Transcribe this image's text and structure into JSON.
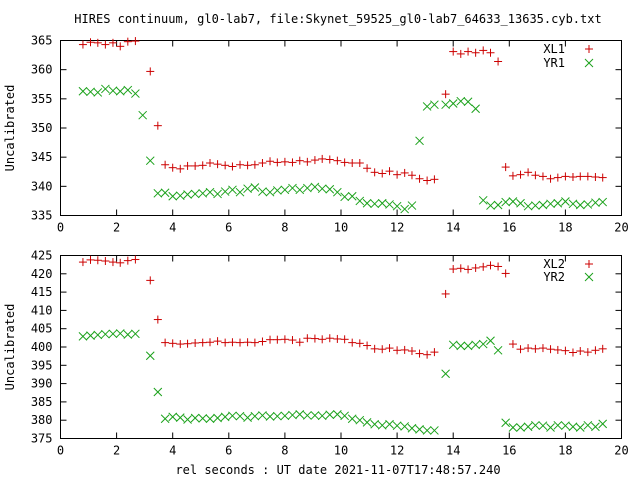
{
  "figure": {
    "title": "HIRES continuum, gl0-lab7, file:Skynet_59525_gl0-lab7_64633_13635.cyb.txt",
    "xlabel": "rel seconds : UT date 2021-11-07T17:48:57.240"
  },
  "colors": {
    "red_series": "#cc0000",
    "green_series": "#1aa11a"
  },
  "chart_data": [
    {
      "type": "scatter",
      "ylabel": "Uncalibrated",
      "xlim": [
        0,
        20
      ],
      "ylim": [
        335,
        365
      ],
      "xticks": [
        0,
        2,
        4,
        6,
        8,
        10,
        12,
        14,
        16,
        18,
        20
      ],
      "yticks": [
        335,
        340,
        345,
        350,
        355,
        360,
        365
      ],
      "legend_position": "top-right",
      "series": [
        {
          "name": "XL1",
          "marker": "plus",
          "x": [
            0.8,
            1.07,
            1.33,
            1.6,
            1.87,
            2.13,
            2.4,
            2.67,
            3.2,
            3.47,
            3.73,
            4.0,
            4.27,
            4.53,
            4.8,
            5.07,
            5.33,
            5.6,
            5.87,
            6.13,
            6.4,
            6.67,
            6.93,
            7.2,
            7.47,
            7.73,
            8.0,
            8.27,
            8.53,
            8.8,
            9.07,
            9.33,
            9.6,
            9.87,
            10.13,
            10.4,
            10.67,
            10.93,
            11.2,
            11.47,
            11.73,
            12.0,
            12.27,
            12.53,
            12.8,
            13.07,
            13.33,
            13.73,
            14.0,
            14.27,
            14.53,
            14.8,
            15.07,
            15.33,
            15.6,
            15.87,
            16.13,
            16.4,
            16.67,
            16.93,
            17.2,
            17.47,
            17.73,
            18.0,
            18.27,
            18.53,
            18.8,
            19.07,
            19.33
          ],
          "y": [
            364.3,
            364.7,
            364.6,
            364.3,
            364.6,
            364.0,
            364.8,
            364.9,
            359.7,
            350.4,
            343.7,
            343.2,
            343.0,
            343.5,
            343.5,
            343.6,
            344.0,
            343.8,
            343.6,
            343.4,
            343.7,
            343.6,
            343.7,
            344.0,
            344.3,
            344.1,
            344.2,
            344.1,
            344.4,
            344.2,
            344.5,
            344.7,
            344.6,
            344.4,
            344.1,
            344.0,
            344.0,
            343.1,
            342.4,
            342.2,
            342.6,
            342.0,
            342.3,
            341.9,
            341.3,
            341.0,
            341.2,
            355.8,
            363.1,
            362.7,
            363.1,
            362.9,
            363.3,
            362.9,
            361.4,
            343.3,
            341.8,
            342.0,
            342.4,
            341.9,
            341.7,
            341.3,
            341.5,
            341.7,
            341.6,
            341.7,
            341.7,
            341.6,
            341.5
          ]
        },
        {
          "name": "YR1",
          "marker": "cross",
          "x": [
            0.8,
            1.07,
            1.33,
            1.6,
            1.87,
            2.13,
            2.4,
            2.67,
            2.93,
            3.2,
            3.47,
            3.73,
            4.0,
            4.27,
            4.53,
            4.8,
            5.07,
            5.33,
            5.6,
            5.87,
            6.13,
            6.4,
            6.67,
            6.93,
            7.2,
            7.47,
            7.73,
            8.0,
            8.27,
            8.53,
            8.8,
            9.07,
            9.33,
            9.6,
            9.87,
            10.13,
            10.4,
            10.67,
            10.93,
            11.2,
            11.47,
            11.73,
            12.0,
            12.27,
            12.53,
            12.8,
            13.07,
            13.33,
            13.73,
            14.0,
            14.27,
            14.53,
            14.8,
            15.07,
            15.33,
            15.6,
            15.87,
            16.13,
            16.4,
            16.67,
            16.93,
            17.2,
            17.47,
            17.73,
            18.0,
            18.27,
            18.53,
            18.8,
            19.07,
            19.33
          ],
          "y": [
            356.3,
            356.2,
            356.1,
            356.7,
            356.4,
            356.3,
            356.5,
            355.9,
            352.2,
            344.4,
            338.8,
            338.9,
            338.3,
            338.4,
            338.6,
            338.7,
            338.8,
            339.0,
            338.7,
            339.1,
            339.4,
            339.0,
            339.6,
            339.8,
            339.1,
            339.0,
            339.3,
            339.4,
            339.7,
            339.4,
            339.7,
            339.9,
            339.6,
            339.5,
            339.0,
            338.2,
            338.3,
            337.5,
            337.1,
            337.0,
            337.1,
            336.9,
            336.6,
            336.1,
            336.7,
            347.8,
            353.7,
            354.0,
            354.0,
            354.2,
            354.6,
            354.5,
            353.3,
            337.6,
            336.7,
            336.8,
            337.3,
            337.4,
            337.1,
            336.6,
            336.7,
            336.8,
            337.0,
            337.1,
            337.4,
            337.0,
            336.8,
            336.9,
            337.2,
            337.3
          ]
        }
      ]
    },
    {
      "type": "scatter",
      "ylabel": "Uncalibrated",
      "xlim": [
        0,
        20
      ],
      "ylim": [
        375,
        425
      ],
      "xticks": [
        0,
        2,
        4,
        6,
        8,
        10,
        12,
        14,
        16,
        18,
        20
      ],
      "yticks": [
        375,
        380,
        385,
        390,
        395,
        400,
        405,
        410,
        415,
        420,
        425
      ],
      "legend_position": "top-right",
      "series": [
        {
          "name": "XL2",
          "marker": "plus",
          "x": [
            0.8,
            1.07,
            1.33,
            1.6,
            1.87,
            2.13,
            2.4,
            2.67,
            3.2,
            3.47,
            3.73,
            4.0,
            4.27,
            4.53,
            4.8,
            5.07,
            5.33,
            5.6,
            5.87,
            6.13,
            6.4,
            6.67,
            6.93,
            7.2,
            7.47,
            7.73,
            8.0,
            8.27,
            8.53,
            8.8,
            9.07,
            9.33,
            9.6,
            9.87,
            10.13,
            10.4,
            10.67,
            10.93,
            11.2,
            11.47,
            11.73,
            12.0,
            12.27,
            12.53,
            12.8,
            13.07,
            13.33,
            13.73,
            14.0,
            14.27,
            14.53,
            14.8,
            15.07,
            15.33,
            15.6,
            15.87,
            16.13,
            16.4,
            16.67,
            16.93,
            17.2,
            17.47,
            17.73,
            18.0,
            18.27,
            18.53,
            18.8,
            19.07,
            19.33
          ],
          "y": [
            423.2,
            423.8,
            423.7,
            423.5,
            423.2,
            423.0,
            423.6,
            423.9,
            418.2,
            407.5,
            401.2,
            401.0,
            400.8,
            400.9,
            401.1,
            401.2,
            401.3,
            401.6,
            401.2,
            401.3,
            401.2,
            401.3,
            401.2,
            401.5,
            402.0,
            402.0,
            402.1,
            401.9,
            401.3,
            402.4,
            402.3,
            402.1,
            402.4,
            402.2,
            402.1,
            401.2,
            401.0,
            400.4,
            399.5,
            399.4,
            399.7,
            399.1,
            399.2,
            398.9,
            398.2,
            397.9,
            398.6,
            414.5,
            421.3,
            421.5,
            421.2,
            421.6,
            421.9,
            422.3,
            422.0,
            420.1,
            400.8,
            399.4,
            399.7,
            399.5,
            399.7,
            399.4,
            399.2,
            399.0,
            398.5,
            398.9,
            398.6,
            399.1,
            399.5
          ]
        },
        {
          "name": "YR2",
          "marker": "cross",
          "x": [
            0.8,
            1.07,
            1.33,
            1.6,
            1.87,
            2.13,
            2.4,
            2.67,
            3.2,
            3.47,
            3.73,
            4.0,
            4.27,
            4.53,
            4.8,
            5.07,
            5.33,
            5.6,
            5.87,
            6.13,
            6.4,
            6.67,
            6.93,
            7.2,
            7.47,
            7.73,
            8.0,
            8.27,
            8.53,
            8.8,
            9.07,
            9.33,
            9.6,
            9.87,
            10.13,
            10.4,
            10.67,
            10.93,
            11.2,
            11.47,
            11.73,
            12.0,
            12.27,
            12.53,
            12.8,
            13.07,
            13.33,
            13.73,
            14.0,
            14.27,
            14.53,
            14.8,
            15.07,
            15.33,
            15.6,
            15.87,
            16.13,
            16.4,
            16.67,
            16.93,
            17.2,
            17.47,
            17.73,
            18.0,
            18.27,
            18.53,
            18.8,
            19.07,
            19.33
          ],
          "y": [
            402.9,
            403.1,
            403.3,
            403.5,
            403.6,
            403.7,
            403.4,
            403.6,
            397.6,
            387.7,
            380.4,
            380.9,
            380.7,
            380.2,
            380.6,
            380.5,
            380.4,
            380.6,
            380.9,
            381.2,
            381.1,
            380.7,
            381.1,
            381.3,
            381.0,
            381.1,
            381.2,
            381.4,
            381.6,
            381.3,
            381.3,
            381.2,
            381.5,
            381.6,
            381.2,
            380.4,
            380.0,
            379.4,
            378.9,
            378.6,
            378.9,
            378.5,
            378.3,
            377.8,
            377.5,
            377.2,
            377.2,
            392.7,
            400.6,
            400.3,
            400.3,
            400.6,
            400.8,
            401.7,
            399.1,
            379.3,
            378.0,
            378.0,
            378.2,
            378.6,
            378.5,
            378.0,
            378.6,
            378.5,
            378.2,
            378.0,
            378.6,
            378.2,
            379.0
          ]
        }
      ]
    }
  ]
}
